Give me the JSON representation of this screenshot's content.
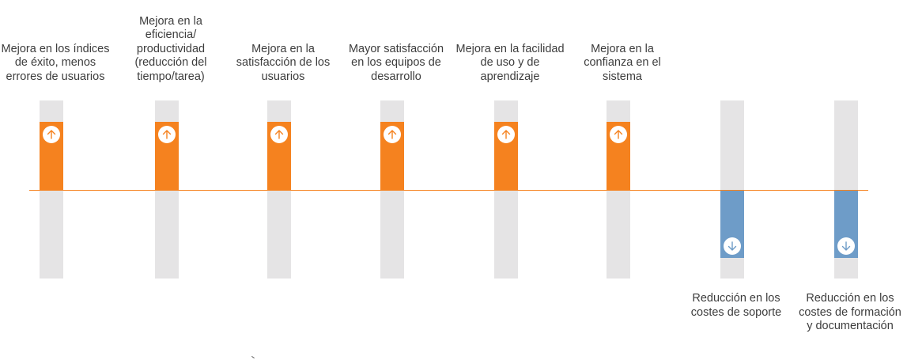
{
  "colors": {
    "increase": "#f5821f",
    "decrease": "#6e9cc8",
    "track": "#e5e4e5",
    "baseline": "#f5821f",
    "text": "#3d3d3d"
  },
  "items": [
    {
      "label": "Mejora en los índices de éxito, menos errores de usuarios",
      "direction": "up",
      "icon": "arrow-up-icon"
    },
    {
      "label": "Mejora en la eficiencia/ productividad (reducción del tiempo/tarea)",
      "direction": "up",
      "icon": "arrow-up-icon"
    },
    {
      "label": "Mejora en la satisfacción de los usuarios",
      "direction": "up",
      "icon": "arrow-up-icon"
    },
    {
      "label": "Mayor satisfacción en los equipos de desarrollo",
      "direction": "up",
      "icon": "arrow-up-icon"
    },
    {
      "label": "Mejora en la facilidad de uso y de aprendizaje",
      "direction": "up",
      "icon": "arrow-up-icon"
    },
    {
      "label": "Mejora en la confianza en el sistema",
      "direction": "up",
      "icon": "arrow-up-icon"
    },
    {
      "label": "Reducción en los costes de soporte",
      "direction": "down",
      "icon": "arrow-down-icon"
    },
    {
      "label": "Reducción en los costes de formación y documentación",
      "direction": "down",
      "icon": "arrow-down-icon"
    }
  ]
}
